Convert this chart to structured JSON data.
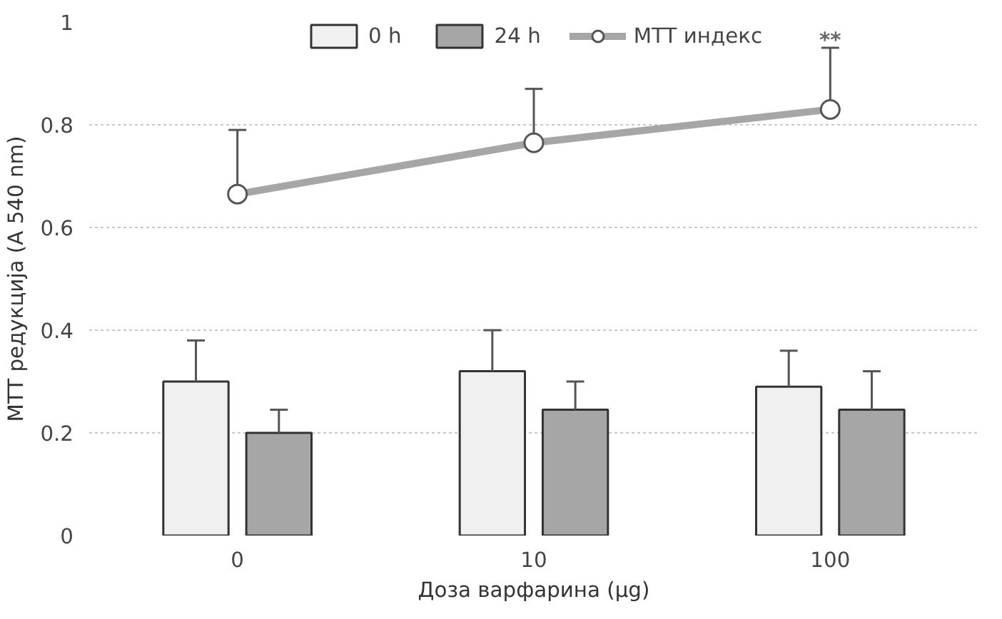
{
  "chart_data": {
    "type": "bar",
    "categories": [
      "0",
      "10",
      "100"
    ],
    "xlabel": "Доза варфарина (µg)",
    "ylabel": "MTT редукција (A 540 nm)",
    "ylim": [
      0,
      1
    ],
    "yticks": [
      0,
      0.2,
      0.4,
      0.6,
      0.8,
      1
    ],
    "grid": "y",
    "legend": "top",
    "series": [
      {
        "name": "0 h",
        "color": "#f0f0f0",
        "values": [
          0.3,
          0.32,
          0.29
        ],
        "errors": [
          [
            0.3,
            0.38
          ],
          [
            0.32,
            0.4
          ],
          [
            0.29,
            0.36
          ]
        ]
      },
      {
        "name": "24 h",
        "color": "#a6a6a6",
        "values": [
          0.2,
          0.245,
          0.245
        ],
        "errors": [
          [
            0.2,
            0.245
          ],
          [
            0.245,
            0.3
          ],
          [
            0.245,
            0.32
          ]
        ]
      },
      {
        "name": "MTT индекс",
        "type": "line",
        "marker": "circle",
        "color": "#a6a6a6",
        "values": [
          0.665,
          0.765,
          0.83
        ],
        "errors": [
          [
            0.665,
            0.79
          ],
          [
            0.765,
            0.87
          ],
          [
            0.83,
            0.95
          ]
        ]
      }
    ],
    "annotations": [
      {
        "text": "**",
        "x": "100",
        "y": 0.83
      }
    ]
  }
}
